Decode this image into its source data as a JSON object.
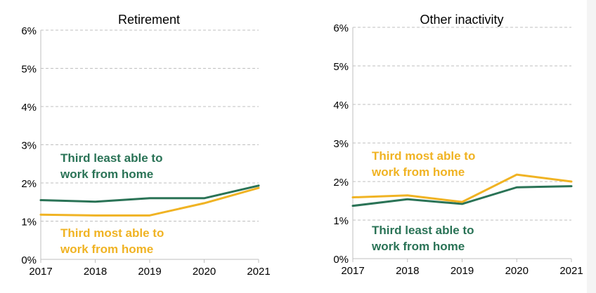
{
  "colors": {
    "least": "#2a7356",
    "most": "#f0b323",
    "grid": "#bfbfbf",
    "axis": "#bfbfbf",
    "text": "#000000"
  },
  "chart_data": [
    {
      "type": "line",
      "title": "Retirement",
      "xlabel": "",
      "ylabel": "",
      "x": [
        2017,
        2018,
        2019,
        2020,
        2021
      ],
      "x_tick_labels": [
        "2017",
        "2018",
        "2019",
        "2020",
        "2021"
      ],
      "ylim": [
        0,
        6
      ],
      "y_ticks": [
        0,
        1,
        2,
        3,
        4,
        5,
        6
      ],
      "y_tick_labels": [
        "0%",
        "1%",
        "2%",
        "3%",
        "4%",
        "5%",
        "6%"
      ],
      "grid": true,
      "series": [
        {
          "key": "least",
          "name": "Third least able to work from home",
          "label_lines": [
            "Third least able to",
            "work from home"
          ],
          "values": [
            1.55,
            1.51,
            1.6,
            1.6,
            1.93
          ]
        },
        {
          "key": "most",
          "name": "Third most able to work from home",
          "label_lines": [
            "Third most able to",
            "work from home"
          ],
          "values": [
            1.17,
            1.15,
            1.15,
            1.47,
            1.87
          ]
        }
      ]
    },
    {
      "type": "line",
      "title": "Other inactivity",
      "xlabel": "",
      "ylabel": "",
      "x": [
        2017,
        2018,
        2019,
        2020,
        2021
      ],
      "x_tick_labels": [
        "2017",
        "2018",
        "2019",
        "2020",
        "2021"
      ],
      "ylim": [
        0,
        6
      ],
      "y_ticks": [
        0,
        1,
        2,
        3,
        4,
        5,
        6
      ],
      "y_tick_labels": [
        "0%",
        "1%",
        "2%",
        "3%",
        "4%",
        "5%",
        "6%"
      ],
      "grid": true,
      "series": [
        {
          "key": "least",
          "name": "Third least able to work from home",
          "label_lines": [
            "Third least able to",
            "work from home"
          ],
          "values": [
            1.37,
            1.54,
            1.42,
            1.85,
            1.88
          ]
        },
        {
          "key": "most",
          "name": "Third most able to work from home",
          "label_lines": [
            "Third most able to",
            "work from home"
          ],
          "values": [
            1.59,
            1.64,
            1.47,
            2.18,
            2.0
          ]
        }
      ]
    }
  ]
}
